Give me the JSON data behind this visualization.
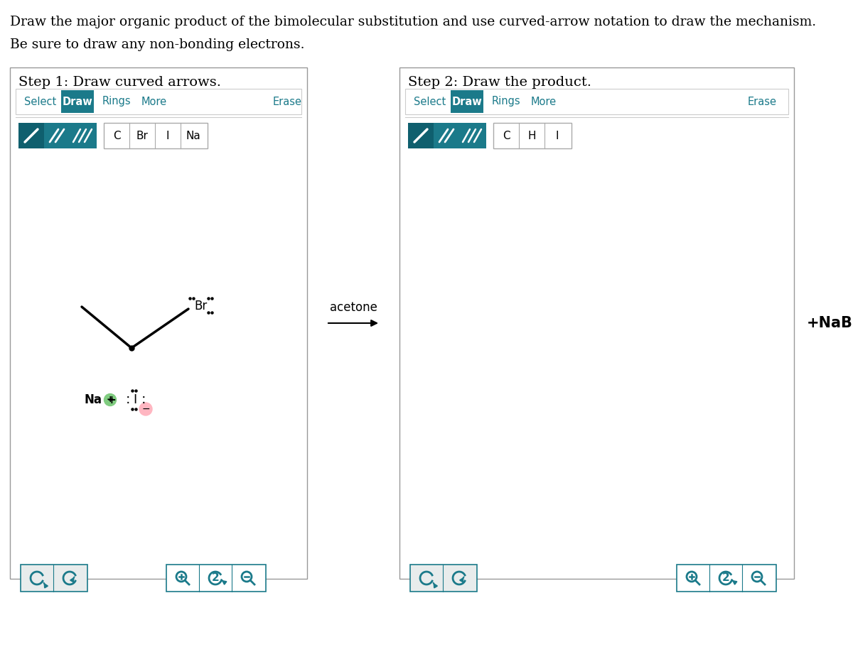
{
  "title_line1": "Draw the major organic product of the bimolecular substitution and use curved-arrow notation to draw the mechanism.",
  "title_line2": "Be sure to draw any non-bonding electrons.",
  "step1_title": "Step 1: Draw curved arrows.",
  "step2_title": "Step 2: Draw the product.",
  "teal": "#1b7a8a",
  "teal_dark": "#0f5f6e",
  "gray_btn": "#e8eded",
  "box_border": "#aaaaaa",
  "arrow_label": "acetone",
  "product_label": "+NaBr",
  "bg_color": "#ffffff",
  "bond_btns_1": [
    "C",
    "Br",
    "I",
    "Na"
  ],
  "bond_btns_2": [
    "C",
    "H",
    "I"
  ],
  "toolbar_1": [
    "Select",
    "Draw",
    "Rings",
    "More",
    "Erase"
  ],
  "toolbar_2": [
    "Select",
    "Draw",
    "Rings",
    "More",
    "Erase"
  ]
}
